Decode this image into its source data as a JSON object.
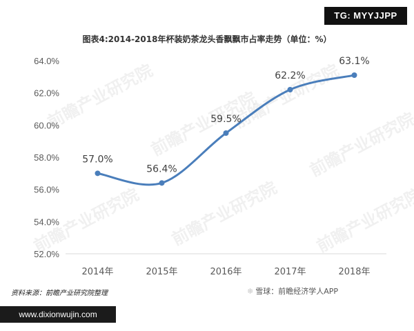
{
  "badge_tg": "TG: MYYJJPP",
  "watermark": "前瞻产业研究院",
  "footer": {
    "source": "资料来源：前瞻产业研究院整理",
    "brand": "雪球：前瞻经济学人APP",
    "url": "www.dixionwujin.com"
  },
  "chart_data": {
    "type": "line",
    "title": "图表4:2014-2018年杯装奶茶龙头香飘飘市占率走势（单位：%）",
    "xlabel": "",
    "ylabel": "",
    "categories": [
      "2014年",
      "2015年",
      "2016年",
      "2017年",
      "2018年"
    ],
    "series": [
      {
        "name": "",
        "values": [
          57.0,
          56.4,
          59.5,
          62.2,
          63.1
        ],
        "labels": [
          "57.0%",
          "56.4%",
          "59.5%",
          "62.2%",
          "63.1%"
        ]
      }
    ],
    "ylim": [
      52.0,
      64.0
    ],
    "yticks": [
      52.0,
      54.0,
      56.0,
      58.0,
      60.0,
      62.0,
      64.0
    ],
    "ytick_labels": [
      "52.0%",
      "54.0%",
      "56.0%",
      "58.0%",
      "60.0%",
      "62.0%",
      "64.0%"
    ],
    "grid": false,
    "legend": "none",
    "colors": {
      "line": "#4a7ebb",
      "marker": "#4a7ebb"
    }
  }
}
